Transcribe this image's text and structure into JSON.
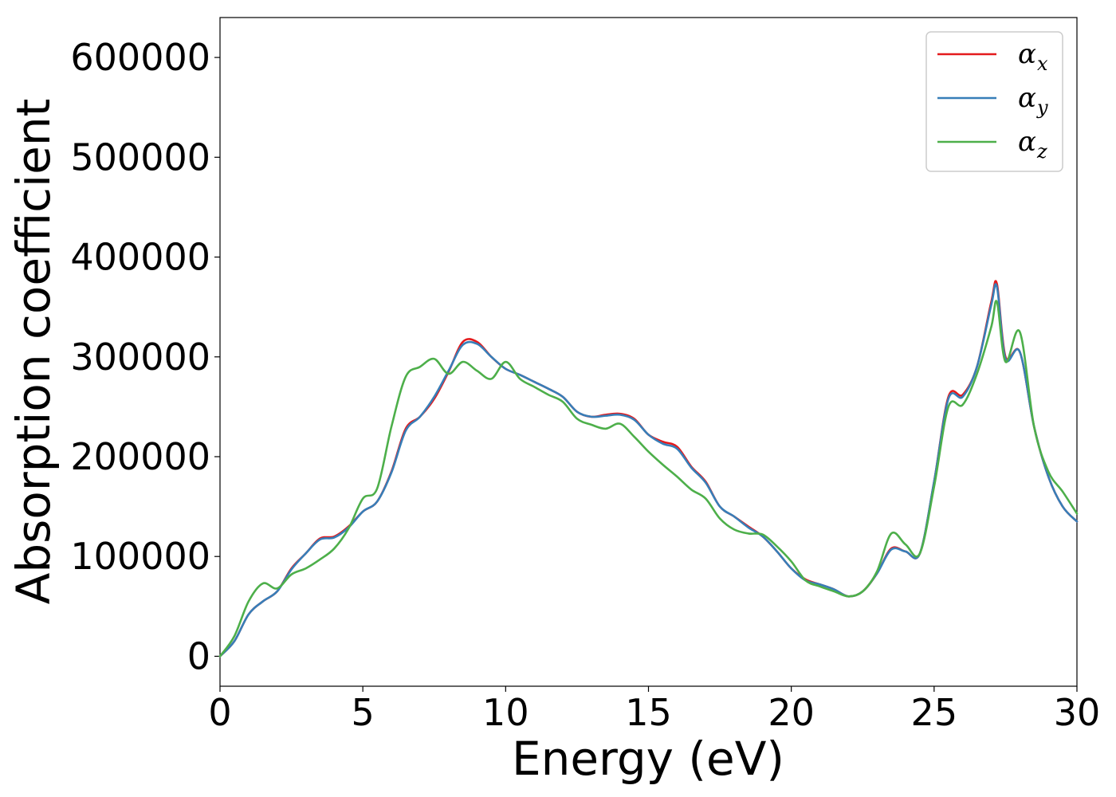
{
  "chart_data": {
    "type": "line",
    "xlabel": "Energy (eV)",
    "ylabel": "Absorption coefficient",
    "xlim": [
      0,
      30
    ],
    "ylim": [
      -30000,
      640000
    ],
    "xticks": [
      0,
      5,
      10,
      15,
      20,
      25,
      30
    ],
    "yticks": [
      0,
      100000,
      200000,
      300000,
      400000,
      500000,
      600000
    ],
    "xtick_labels": [
      "0",
      "5",
      "10",
      "15",
      "20",
      "25",
      "30"
    ],
    "ytick_labels": [
      "0",
      "100000",
      "200000",
      "300000",
      "400000",
      "500000",
      "600000"
    ],
    "legend_position": "top-right",
    "grid": false,
    "x": [
      0,
      0.5,
      1,
      1.5,
      2,
      2.5,
      3,
      3.5,
      4,
      4.5,
      5,
      5.5,
      6,
      6.5,
      7,
      7.5,
      8,
      8.5,
      9,
      9.5,
      10,
      10.5,
      11,
      11.5,
      12,
      12.5,
      13,
      13.5,
      14,
      14.5,
      15,
      15.5,
      16,
      16.5,
      17,
      17.5,
      18,
      18.5,
      19,
      19.5,
      20,
      20.5,
      21,
      21.5,
      22,
      22.5,
      23,
      23.5,
      24,
      24.5,
      25,
      25.5,
      26,
      26.5,
      27,
      27.2,
      27.5,
      28,
      28.5,
      29,
      29.5,
      30
    ],
    "series": [
      {
        "name": "x",
        "color": "#e41a1c",
        "values": [
          0,
          15000,
          42000,
          55000,
          65000,
          88000,
          103000,
          118000,
          120000,
          130000,
          145000,
          155000,
          185000,
          228000,
          240000,
          258000,
          285000,
          315000,
          315000,
          300000,
          288000,
          282000,
          275000,
          268000,
          260000,
          245000,
          240000,
          242000,
          243000,
          238000,
          222000,
          215000,
          210000,
          190000,
          175000,
          150000,
          140000,
          130000,
          120000,
          105000,
          88000,
          77000,
          72000,
          67000,
          60000,
          65000,
          83000,
          108000,
          105000,
          103000,
          175000,
          260000,
          262000,
          290000,
          355000,
          373000,
          300000,
          305000,
          230000,
          180000,
          150000,
          135000
        ]
      },
      {
        "name": "y",
        "color": "#377eb8",
        "values": [
          0,
          15000,
          42000,
          55000,
          65000,
          87000,
          103000,
          117000,
          119000,
          129000,
          145000,
          155000,
          184000,
          226000,
          240000,
          260000,
          286000,
          312000,
          313000,
          300000,
          288000,
          282000,
          275000,
          268000,
          260000,
          245000,
          240000,
          241000,
          242000,
          237000,
          222000,
          213000,
          208000,
          189000,
          174000,
          150000,
          140000,
          129000,
          120000,
          105000,
          88000,
          76000,
          72000,
          67000,
          60000,
          65000,
          83000,
          107000,
          105000,
          103000,
          175000,
          258000,
          260000,
          290000,
          352000,
          370000,
          298000,
          305000,
          230000,
          180000,
          150000,
          135000
        ]
      },
      {
        "name": "z",
        "color": "#4daf4a",
        "values": [
          0,
          20000,
          55000,
          73000,
          68000,
          82000,
          88000,
          97000,
          108000,
          128000,
          158000,
          168000,
          230000,
          280000,
          290000,
          298000,
          283000,
          295000,
          286000,
          278000,
          295000,
          278000,
          270000,
          262000,
          255000,
          238000,
          232000,
          228000,
          233000,
          220000,
          205000,
          192000,
          180000,
          167000,
          158000,
          138000,
          127000,
          123000,
          122000,
          110000,
          95000,
          76000,
          70000,
          65000,
          60000,
          65000,
          85000,
          123000,
          112000,
          103000,
          170000,
          250000,
          252000,
          283000,
          330000,
          355000,
          295000,
          325000,
          230000,
          185000,
          165000,
          143000
        ]
      }
    ]
  }
}
